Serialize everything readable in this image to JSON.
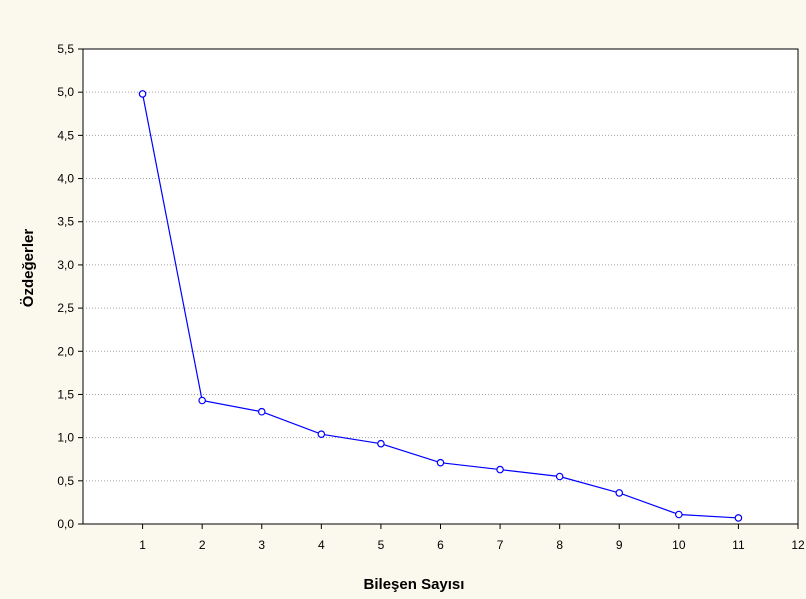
{
  "chart_data": {
    "type": "line",
    "xlabel": "Bileşen Sayısı",
    "ylabel": "Özdeğerler",
    "xlim": [
      0,
      12
    ],
    "ylim": [
      0,
      5.5
    ],
    "x_ticks": [
      "1",
      "2",
      "3",
      "4",
      "5",
      "6",
      "7",
      "8",
      "9",
      "10",
      "11",
      "12"
    ],
    "y_ticks": [
      "0,0",
      "0,5",
      "1,0",
      "1,5",
      "2,0",
      "2,5",
      "3,0",
      "3,5",
      "4,0",
      "4,5",
      "5,0",
      "5,5"
    ],
    "grid": true,
    "series": [
      {
        "x": [
          1,
          2,
          3,
          4,
          5,
          6,
          7,
          8,
          9,
          10,
          11
        ],
        "values": [
          4.98,
          1.43,
          1.3,
          1.04,
          0.93,
          0.71,
          0.63,
          0.55,
          0.36,
          0.11,
          0.07
        ],
        "color": "#0000ff",
        "marker": "circle"
      }
    ]
  }
}
